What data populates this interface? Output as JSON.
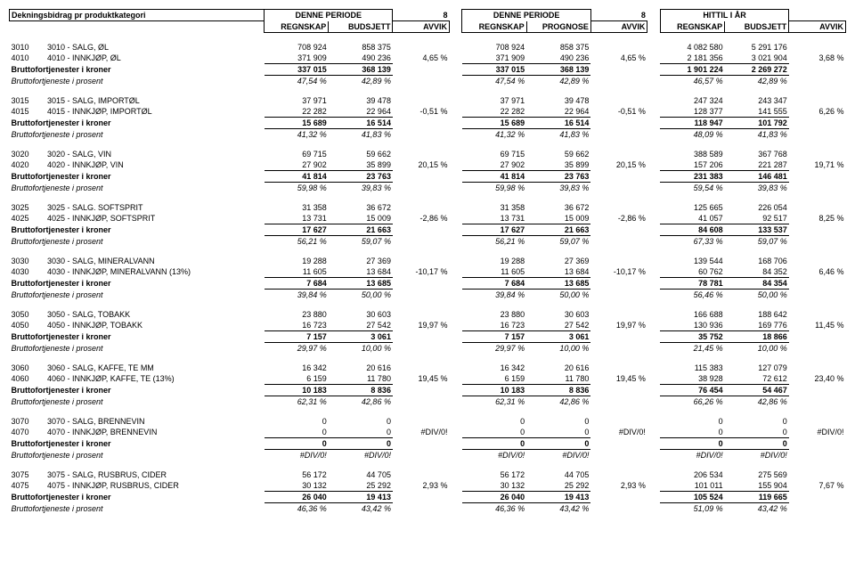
{
  "header": {
    "title": "Dekningsbidrag pr produktkategori",
    "period_a": "DENNE PERIODE",
    "period_b": "DENNE PERIODE",
    "period_c": "HITTIL I ÅR",
    "col_regnskap": "REGNSKAP",
    "col_budsjett": "BUDSJETT",
    "col_prognose": "PROGNOSE",
    "col_avvik": "AVVIK",
    "eight": "8"
  },
  "labels": {
    "brutto_kr": "Bruttofortjenester i kroner",
    "brutto_pct": "Bruttofortjeneste i prosent"
  },
  "groups": [
    {
      "rows": [
        {
          "code": "3010",
          "name": "3010 - SALG, ØL",
          "a1": "708 924",
          "a2": "858 375",
          "b1": "708 924",
          "b2": "858 375",
          "c1": "4 082 580",
          "c2": "5 291 176"
        },
        {
          "code": "4010",
          "name": "4010 - INNKJØP, ØL",
          "a1": "371 909",
          "a2": "490 236",
          "b1": "371 909",
          "b2": "490 236",
          "c1": "2 181 356",
          "c2": "3 021 904"
        }
      ],
      "brutto": {
        "a1": "337 015",
        "a2": "368 139",
        "b1": "337 015",
        "b2": "368 139",
        "c1": "1 901 224",
        "c2": "2 269 272"
      },
      "pct": {
        "a1": "47,54 %",
        "a2": "42,89 %",
        "b1": "47,54 %",
        "b2": "42,89 %",
        "c1": "46,57 %",
        "c2": "42,89 %"
      },
      "avvik": {
        "a": "4,65 %",
        "b": "4,65 %",
        "c": "3,68 %"
      }
    },
    {
      "rows": [
        {
          "code": "3015",
          "name": "3015 - SALG, IMPORTØL",
          "a1": "37 971",
          "a2": "39 478",
          "b1": "37 971",
          "b2": "39 478",
          "c1": "247 324",
          "c2": "243 347"
        },
        {
          "code": "4015",
          "name": "4015 - INNKJØP, IMPORTØL",
          "a1": "22 282",
          "a2": "22 964",
          "b1": "22 282",
          "b2": "22 964",
          "c1": "128 377",
          "c2": "141 555"
        }
      ],
      "brutto": {
        "a1": "15 689",
        "a2": "16 514",
        "b1": "15 689",
        "b2": "16 514",
        "c1": "118 947",
        "c2": "101 792"
      },
      "pct": {
        "a1": "41,32 %",
        "a2": "41,83 %",
        "b1": "41,32 %",
        "b2": "41,83 %",
        "c1": "48,09 %",
        "c2": "41,83 %"
      },
      "avvik": {
        "a": "-0,51 %",
        "b": "-0,51 %",
        "c": "6,26 %"
      }
    },
    {
      "rows": [
        {
          "code": "3020",
          "name": "3020 - SALG, VIN",
          "a1": "69 715",
          "a2": "59 662",
          "b1": "69 715",
          "b2": "59 662",
          "c1": "388 589",
          "c2": "367 768"
        },
        {
          "code": "4020",
          "name": "4020 - INNKJØP, VIN",
          "a1": "27 902",
          "a2": "35 899",
          "b1": "27 902",
          "b2": "35 899",
          "c1": "157 206",
          "c2": "221 287"
        }
      ],
      "brutto": {
        "a1": "41 814",
        "a2": "23 763",
        "b1": "41 814",
        "b2": "23 763",
        "c1": "231 383",
        "c2": "146 481"
      },
      "pct": {
        "a1": "59,98 %",
        "a2": "39,83 %",
        "b1": "59,98 %",
        "b2": "39,83 %",
        "c1": "59,54 %",
        "c2": "39,83 %"
      },
      "avvik": {
        "a": "20,15 %",
        "b": "20,15 %",
        "c": "19,71 %"
      }
    },
    {
      "rows": [
        {
          "code": "3025",
          "name": "3025 - SALG. SOFTSPRIT",
          "a1": "31 358",
          "a2": "36 672",
          "b1": "31 358",
          "b2": "36 672",
          "c1": "125 665",
          "c2": "226 054"
        },
        {
          "code": "4025",
          "name": "4025 - INNKJØP, SOFTSPRIT",
          "a1": "13 731",
          "a2": "15 009",
          "b1": "13 731",
          "b2": "15 009",
          "c1": "41 057",
          "c2": "92 517"
        }
      ],
      "brutto": {
        "a1": "17 627",
        "a2": "21 663",
        "b1": "17 627",
        "b2": "21 663",
        "c1": "84 608",
        "c2": "133 537"
      },
      "pct": {
        "a1": "56,21 %",
        "a2": "59,07 %",
        "b1": "56,21 %",
        "b2": "59,07 %",
        "c1": "67,33 %",
        "c2": "59,07 %"
      },
      "avvik": {
        "a": "-2,86 %",
        "b": "-2,86 %",
        "c": "8,25 %"
      }
    },
    {
      "rows": [
        {
          "code": "3030",
          "name": "3030 - SALG, MINERALVANN",
          "a1": "19 288",
          "a2": "27 369",
          "b1": "19 288",
          "b2": "27 369",
          "c1": "139 544",
          "c2": "168 706"
        },
        {
          "code": "4030",
          "name": "4030 - INNKJØP, MINERALVANN (13%)",
          "a1": "11 605",
          "a2": "13 684",
          "b1": "11 605",
          "b2": "13 684",
          "c1": "60 762",
          "c2": "84 352"
        }
      ],
      "brutto": {
        "a1": "7 684",
        "a2": "13 685",
        "b1": "7 684",
        "b2": "13 685",
        "c1": "78 781",
        "c2": "84 354"
      },
      "pct": {
        "a1": "39,84 %",
        "a2": "50,00 %",
        "b1": "39,84 %",
        "b2": "50,00 %",
        "c1": "56,46 %",
        "c2": "50,00 %"
      },
      "avvik": {
        "a": "-10,17 %",
        "b": "-10,17 %",
        "c": "6,46 %"
      }
    },
    {
      "rows": [
        {
          "code": "3050",
          "name": "3050 - SALG, TOBAKK",
          "a1": "23 880",
          "a2": "30 603",
          "b1": "23 880",
          "b2": "30 603",
          "c1": "166 688",
          "c2": "188 642"
        },
        {
          "code": "4050",
          "name": "4050 - INNKJØP, TOBAKK",
          "a1": "16 723",
          "a2": "27 542",
          "b1": "16 723",
          "b2": "27 542",
          "c1": "130 936",
          "c2": "169 776"
        }
      ],
      "brutto": {
        "a1": "7 157",
        "a2": "3 061",
        "b1": "7 157",
        "b2": "3 061",
        "c1": "35 752",
        "c2": "18 866"
      },
      "pct": {
        "a1": "29,97 %",
        "a2": "10,00 %",
        "b1": "29,97 %",
        "b2": "10,00 %",
        "c1": "21,45 %",
        "c2": "10,00 %"
      },
      "avvik": {
        "a": "19,97 %",
        "b": "19,97 %",
        "c": "11,45 %"
      }
    },
    {
      "rows": [
        {
          "code": "3060",
          "name": "3060 - SALG, KAFFE, TE MM",
          "a1": "16 342",
          "a2": "20 616",
          "b1": "16 342",
          "b2": "20 616",
          "c1": "115 383",
          "c2": "127 079"
        },
        {
          "code": "4060",
          "name": "4060 - INNKJØP, KAFFE, TE (13%)",
          "a1": "6 159",
          "a2": "11 780",
          "b1": "6 159",
          "b2": "11 780",
          "c1": "38 928",
          "c2": "72 612"
        }
      ],
      "brutto": {
        "a1": "10 183",
        "a2": "8 836",
        "b1": "10 183",
        "b2": "8 836",
        "c1": "76 454",
        "c2": "54 467"
      },
      "pct": {
        "a1": "62,31 %",
        "a2": "42,86 %",
        "b1": "62,31 %",
        "b2": "42,86 %",
        "c1": "66,26 %",
        "c2": "42,86 %"
      },
      "avvik": {
        "a": "19,45 %",
        "b": "19,45 %",
        "c": "23,40 %"
      }
    },
    {
      "rows": [
        {
          "code": "3070",
          "name": "3070 - SALG, BRENNEVIN",
          "a1": "0",
          "a2": "0",
          "b1": "0",
          "b2": "0",
          "c1": "0",
          "c2": "0"
        },
        {
          "code": "4070",
          "name": "4070 - INNKJØP, BRENNEVIN",
          "a1": "0",
          "a2": "0",
          "b1": "0",
          "b2": "0",
          "c1": "0",
          "c2": "0"
        }
      ],
      "brutto": {
        "a1": "0",
        "a2": "0",
        "b1": "0",
        "b2": "0",
        "c1": "0",
        "c2": "0"
      },
      "pct": {
        "a1": "#DIV/0!",
        "a2": "#DIV/0!",
        "b1": "#DIV/0!",
        "b2": "#DIV/0!",
        "c1": "#DIV/0!",
        "c2": "#DIV/0!"
      },
      "avvik": {
        "a": "#DIV/0!",
        "b": "#DIV/0!",
        "c": "#DIV/0!"
      }
    },
    {
      "rows": [
        {
          "code": "3075",
          "name": "3075 - SALG, RUSBRUS, CIDER",
          "a1": "56 172",
          "a2": "44 705",
          "b1": "56 172",
          "b2": "44 705",
          "c1": "206 534",
          "c2": "275 569"
        },
        {
          "code": "4075",
          "name": "4075 - INNKJØP, RUSBRUS, CIDER",
          "a1": "30 132",
          "a2": "25 292",
          "b1": "30 132",
          "b2": "25 292",
          "c1": "101 011",
          "c2": "155 904"
        }
      ],
      "brutto": {
        "a1": "26 040",
        "a2": "19 413",
        "b1": "26 040",
        "b2": "19 413",
        "c1": "105 524",
        "c2": "119 665"
      },
      "pct": {
        "a1": "46,36 %",
        "a2": "43,42 %",
        "b1": "46,36 %",
        "b2": "43,42 %",
        "c1": "51,09 %",
        "c2": "43,42 %"
      },
      "avvik": {
        "a": "2,93 %",
        "b": "2,93 %",
        "c": "7,67 %"
      }
    }
  ]
}
